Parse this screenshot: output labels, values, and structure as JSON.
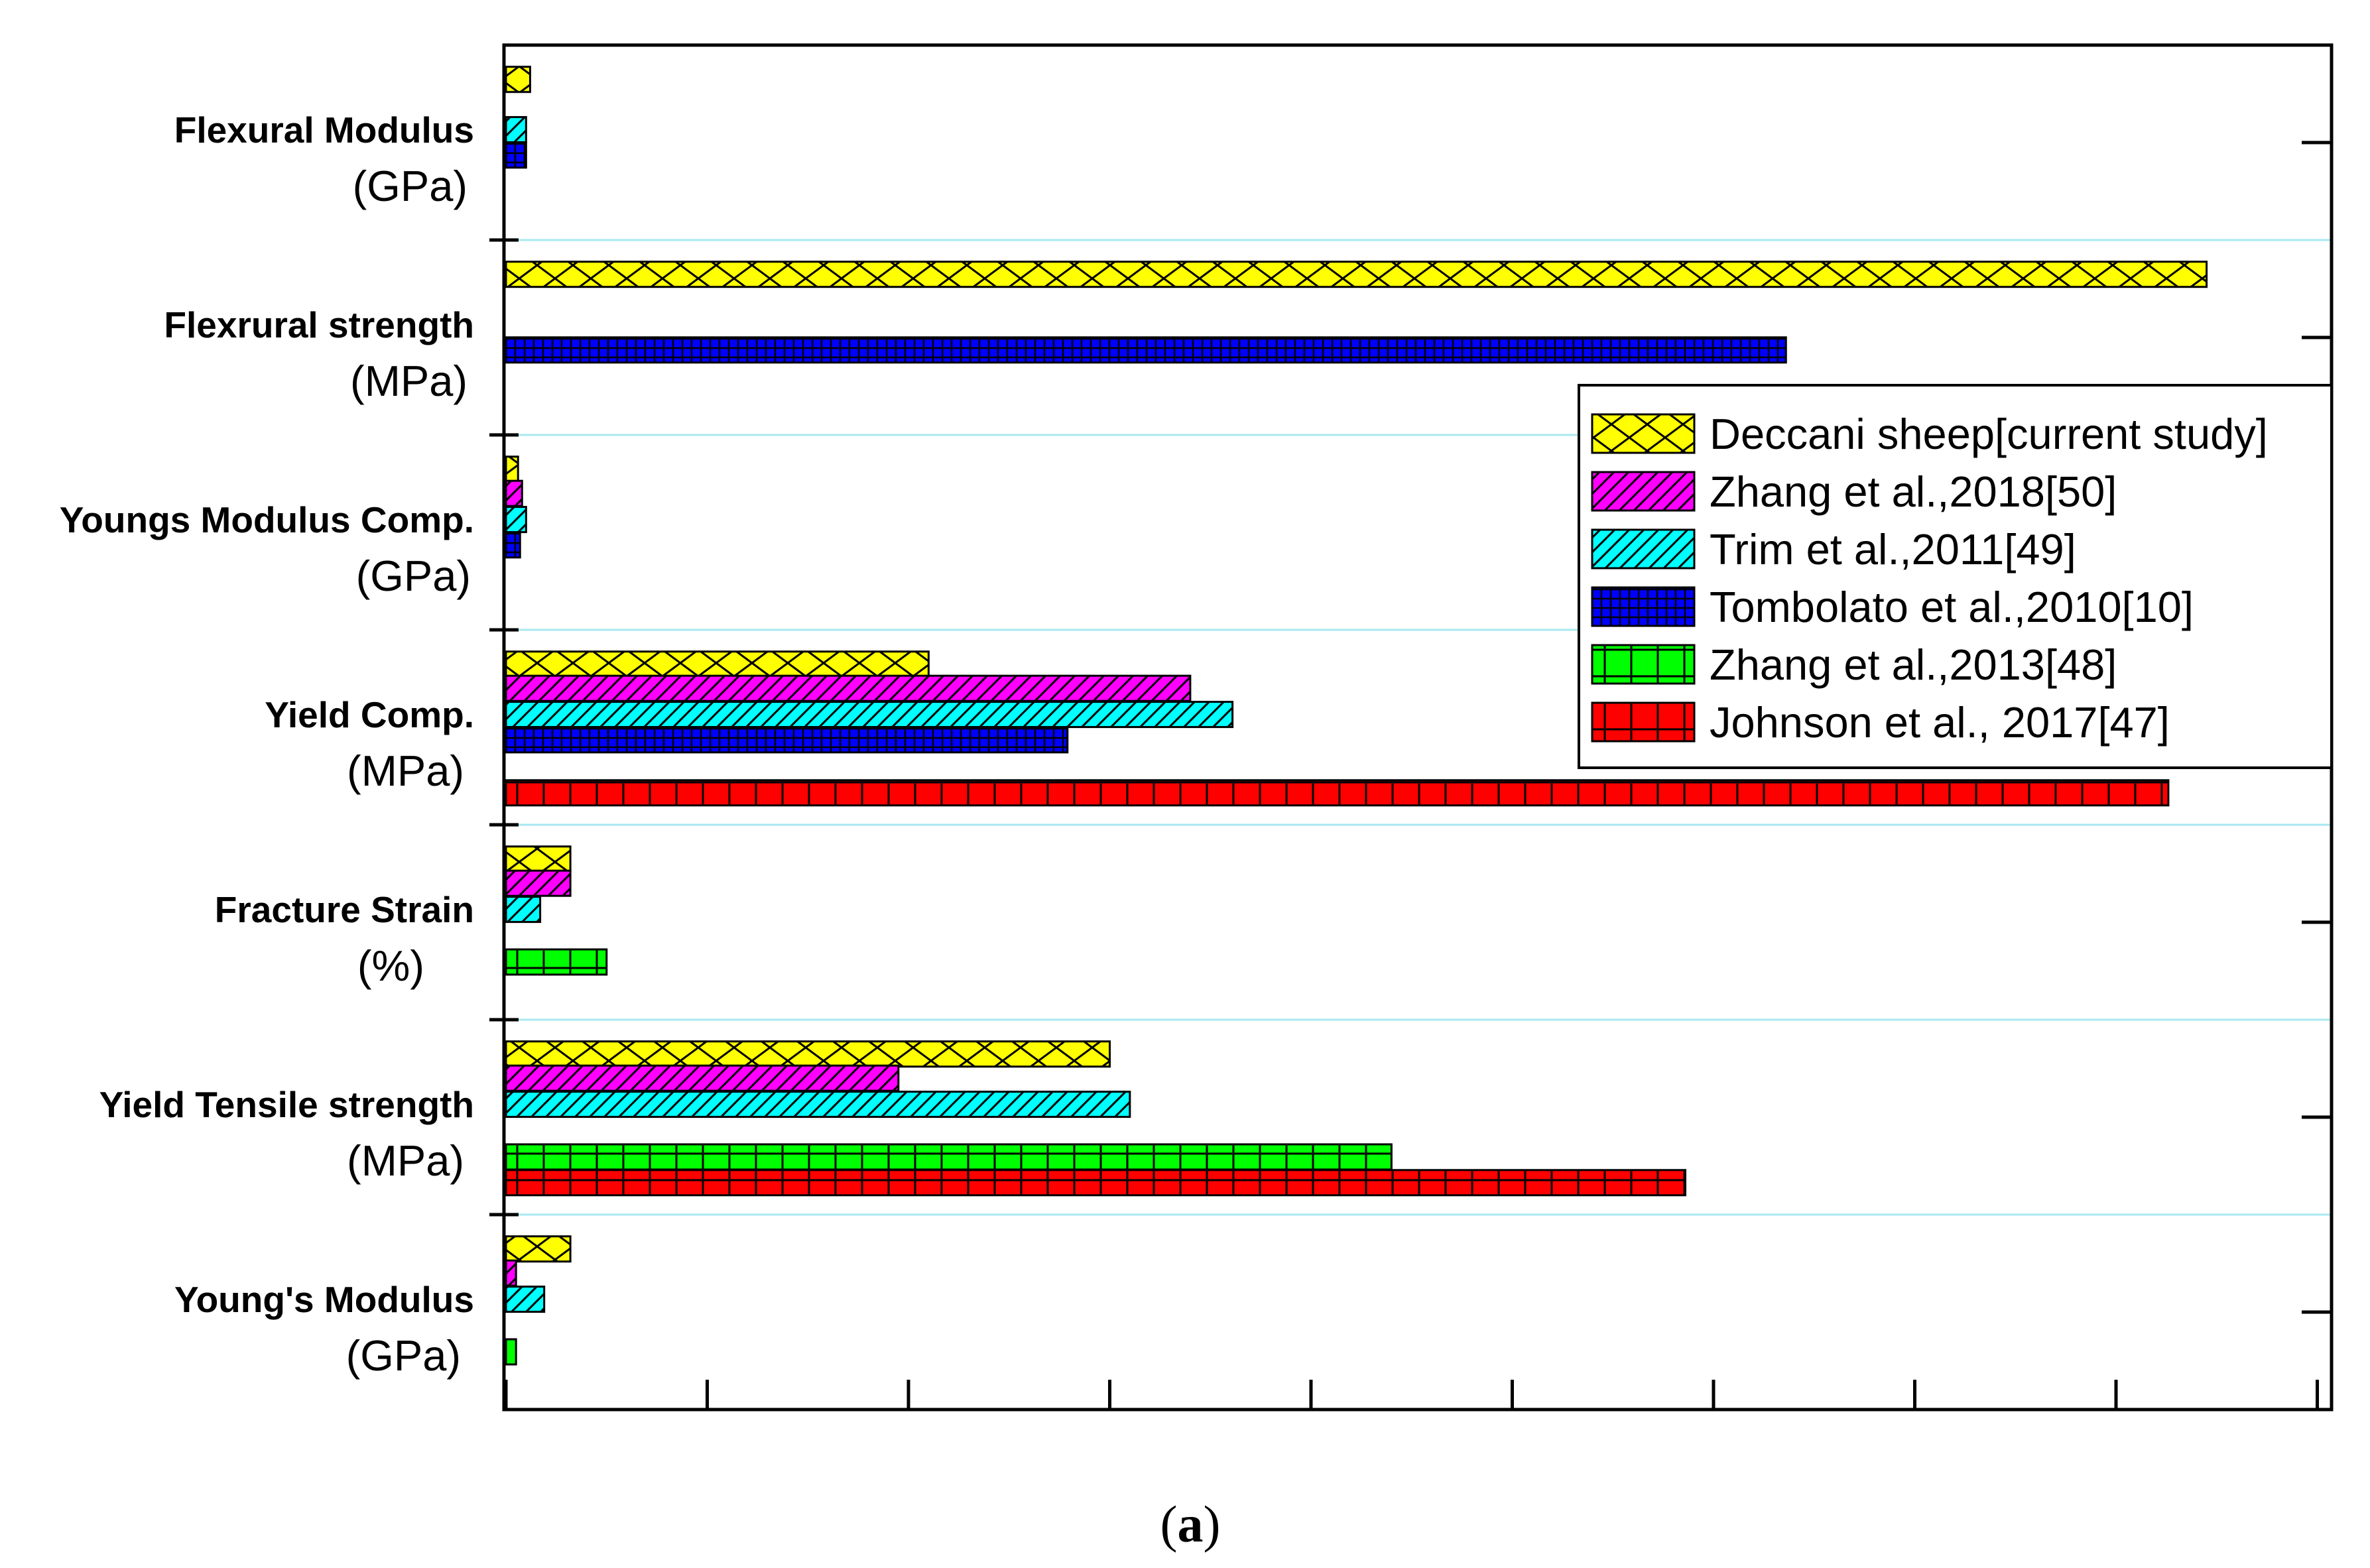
{
  "chart_data": {
    "type": "bar",
    "orientation": "horizontal",
    "title": "",
    "xlabel": "",
    "ylabel": "",
    "xlim": [
      0,
      0.9
    ],
    "grid": true,
    "legend_position": "top-right",
    "categories": [
      {
        "name": "Flexural Modulus",
        "unit": "(GPa)"
      },
      {
        "name": "Flexrural strength",
        "unit": "(MPa)"
      },
      {
        "name": "Youngs Modulus Comp.",
        "unit": "(GPa)"
      },
      {
        "name": "Yield  Comp.",
        "unit": "(MPa)"
      },
      {
        "name": "Fracture Strain",
        "unit": "(%)"
      },
      {
        "name": "Yield Tensile strength",
        "unit": "(MPa)"
      },
      {
        "name": "Young's Modulus",
        "unit": "(GPa)"
      }
    ],
    "series": [
      {
        "name": "Deccani sheep[current study]",
        "color": "#ffff00",
        "pattern": "crosshatch",
        "values": [
          0.012,
          0.845,
          0.006,
          0.21,
          0.032,
          0.3,
          0.032
        ]
      },
      {
        "name": "Zhang et al.,2018[50]",
        "color": "#ff00ff",
        "pattern": "diagonal",
        "values": [
          null,
          null,
          0.008,
          0.34,
          0.032,
          0.195,
          0.005
        ]
      },
      {
        "name": "Trim et al.,2011[49]",
        "color": "#00ffff",
        "pattern": "diagonal",
        "values": [
          0.01,
          null,
          0.01,
          0.361,
          0.017,
          0.31,
          0.019
        ]
      },
      {
        "name": "Tombolato et al.,2010[10]",
        "color": "#0000ff",
        "pattern": "grid-fine",
        "values": [
          0.01,
          0.636,
          0.007,
          0.279,
          null,
          null,
          null
        ]
      },
      {
        "name": "Zhang et al.,2013[48]",
        "color": "#00ff00",
        "pattern": "grid",
        "values": [
          null,
          null,
          null,
          null,
          0.05,
          0.44,
          0.005
        ]
      },
      {
        "name": "Johnson et al., 2017[47]",
        "color": "#ff0000",
        "pattern": "grid",
        "values": [
          null,
          null,
          null,
          0.826,
          null,
          0.586,
          null
        ]
      }
    ]
  },
  "caption": {
    "open": "(",
    "letter": "a",
    "close": ")"
  }
}
